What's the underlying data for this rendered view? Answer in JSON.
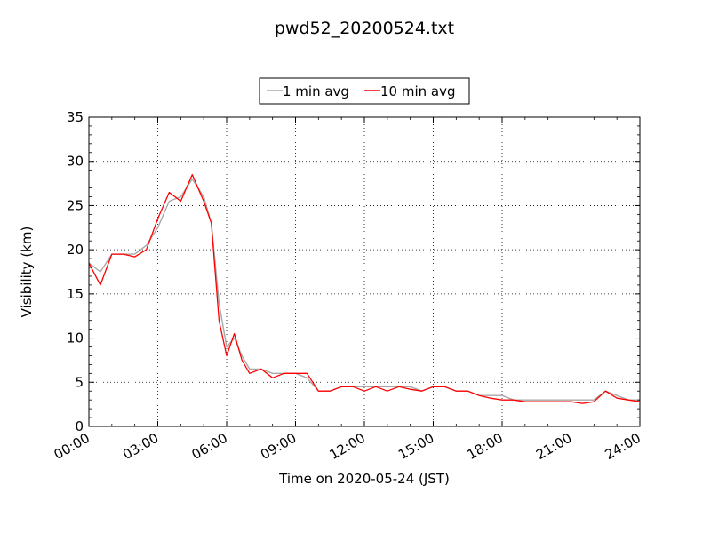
{
  "chart_data": {
    "type": "line",
    "title": "pwd52_20200524.txt",
    "xlabel": "Time on 2020-05-24 (JST)",
    "ylabel": "Visibility (km)",
    "xlim": [
      "00:00",
      "24:00"
    ],
    "ylim": [
      0,
      35
    ],
    "x_ticks": [
      "00:00",
      "03:00",
      "06:00",
      "09:00",
      "12:00",
      "15:00",
      "18:00",
      "21:00",
      "24:00"
    ],
    "y_ticks": [
      0,
      5,
      10,
      15,
      20,
      25,
      30,
      35
    ],
    "grid": true,
    "legend_position": "top-center",
    "x": [
      "00:00",
      "00:30",
      "01:00",
      "01:30",
      "02:00",
      "02:30",
      "03:00",
      "03:30",
      "04:00",
      "04:30",
      "05:00",
      "05:20",
      "05:40",
      "06:00",
      "06:20",
      "06:40",
      "07:00",
      "07:30",
      "08:00",
      "08:30",
      "09:00",
      "09:30",
      "10:00",
      "10:30",
      "11:00",
      "11:30",
      "12:00",
      "12:30",
      "13:00",
      "13:30",
      "14:00",
      "14:30",
      "15:00",
      "15:30",
      "16:00",
      "16:30",
      "17:00",
      "17:30",
      "18:00",
      "18:30",
      "19:00",
      "19:30",
      "20:00",
      "20:30",
      "21:00",
      "21:30",
      "22:00",
      "22:30",
      "23:00",
      "23:30",
      "24:00"
    ],
    "series": [
      {
        "name": "1 min avg",
        "color": "#a8a8a8",
        "values": [
          18.5,
          17.5,
          19.5,
          19.5,
          19.5,
          20.5,
          22.5,
          25.5,
          26.0,
          28.0,
          26.0,
          23.0,
          14.0,
          9.0,
          10.0,
          8.0,
          6.5,
          6.5,
          6.0,
          6.0,
          6.0,
          5.5,
          4.0,
          4.0,
          4.5,
          4.5,
          4.5,
          4.5,
          4.5,
          4.5,
          4.5,
          4.0,
          4.5,
          4.5,
          4.0,
          4.0,
          3.5,
          3.5,
          3.5,
          3.0,
          3.0,
          3.0,
          3.0,
          3.0,
          3.0,
          3.0,
          3.0,
          4.0,
          3.5,
          3.0,
          3.0
        ]
      },
      {
        "name": "10 min avg",
        "color": "#ff0000",
        "values": [
          18.5,
          16.0,
          19.5,
          19.5,
          19.2,
          20.0,
          23.5,
          26.5,
          25.5,
          28.5,
          25.5,
          23.0,
          12.0,
          8.0,
          10.5,
          7.5,
          6.0,
          6.5,
          5.5,
          6.0,
          6.0,
          6.0,
          4.0,
          4.0,
          4.5,
          4.5,
          4.0,
          4.5,
          4.0,
          4.5,
          4.2,
          4.0,
          4.5,
          4.5,
          4.0,
          4.0,
          3.5,
          3.2,
          3.0,
          3.0,
          2.8,
          2.8,
          2.8,
          2.8,
          2.8,
          2.6,
          2.8,
          4.0,
          3.2,
          3.0,
          2.8
        ]
      }
    ]
  }
}
